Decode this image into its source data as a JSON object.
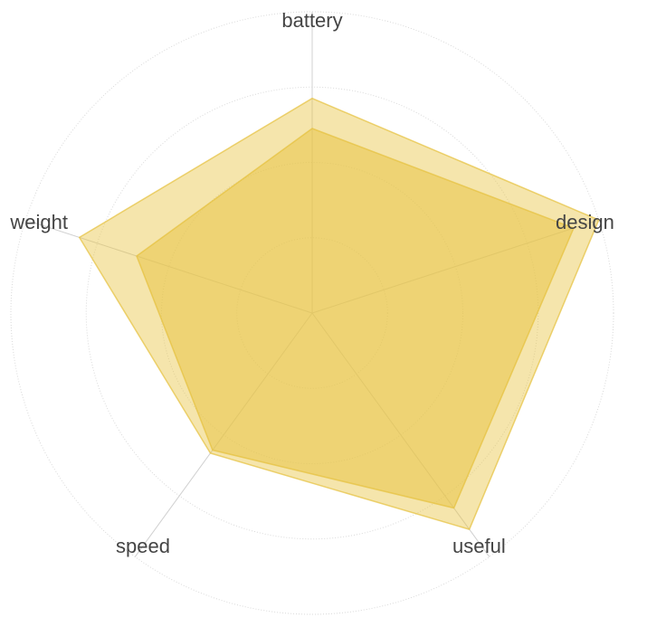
{
  "chart_data": {
    "type": "radar",
    "axes": [
      "battery",
      "design",
      "useful",
      "speed",
      "weight"
    ],
    "max": 4,
    "grid_levels": 4,
    "series": [
      {
        "values": [
          2.85,
          4.0,
          3.55,
          2.3,
          3.25
        ],
        "color": "#E8C547",
        "opacity": 0.45
      },
      {
        "values": [
          2.45,
          3.65,
          3.2,
          2.25,
          2.45
        ],
        "color": "#E8C547",
        "opacity": 0.55
      }
    ]
  },
  "colors": {
    "fill": "#E8C547",
    "stroke": "#E6C13C",
    "grid": "#d9d9d9",
    "label": "#444444"
  }
}
